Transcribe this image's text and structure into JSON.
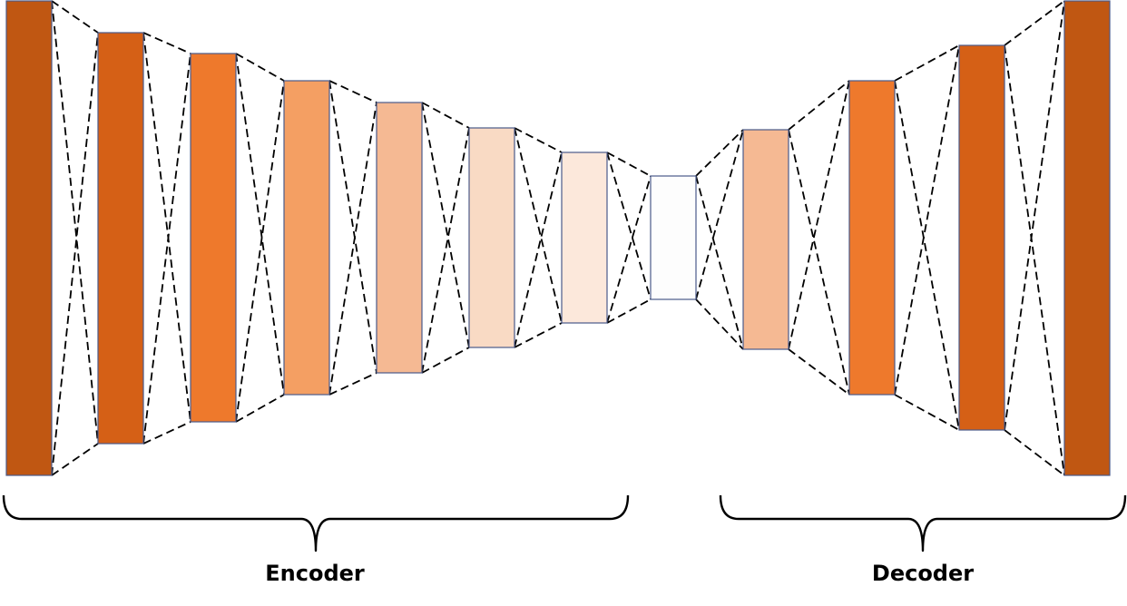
{
  "labels": {
    "encoder": "Encoder",
    "decoder": "Decoder"
  },
  "colors": {
    "layer_outline": "#4a5a8a",
    "connector": "#000000",
    "brace": "#000000"
  },
  "layers": [
    {
      "group": "encoder",
      "color": "#c05712"
    },
    {
      "group": "encoder",
      "color": "#d56016"
    },
    {
      "group": "encoder",
      "color": "#ee792c"
    },
    {
      "group": "encoder",
      "color": "#f49f63"
    },
    {
      "group": "encoder",
      "color": "#f5b993"
    },
    {
      "group": "encoder",
      "color": "#f9dac4"
    },
    {
      "group": "encoder",
      "color": "#fce8db"
    },
    {
      "group": "bottleneck",
      "color": "#fdfdfd"
    },
    {
      "group": "decoder",
      "color": "#f5b993"
    },
    {
      "group": "decoder",
      "color": "#ee792c"
    },
    {
      "group": "decoder",
      "color": "#d56016"
    },
    {
      "group": "decoder",
      "color": "#c05712"
    }
  ]
}
